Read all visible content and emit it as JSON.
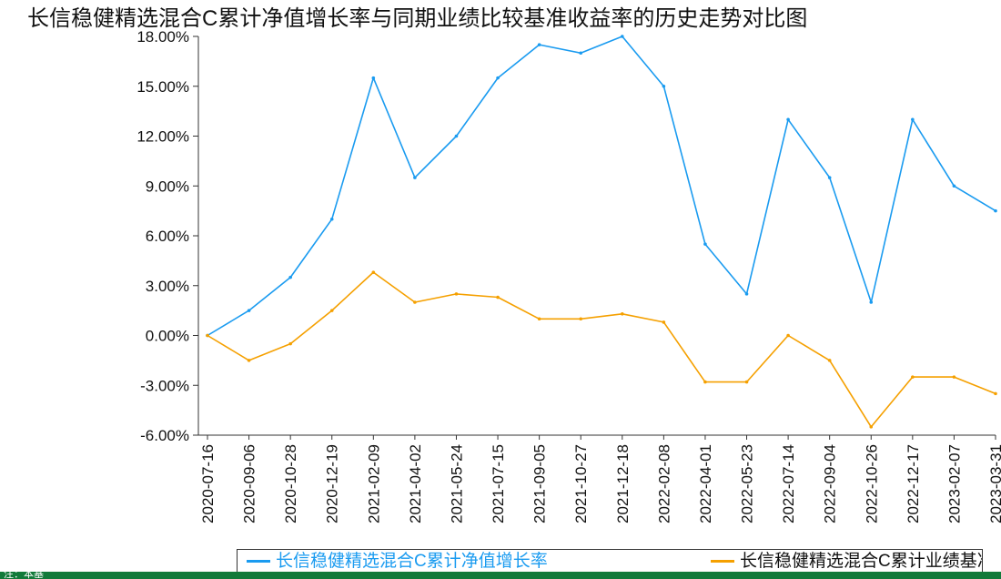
{
  "title": "长信稳健精选混合C累计净值增长率与同期业绩比较基准收益率的历史走势对比图",
  "legend": {
    "series1_label": "长信稳健精选混合C累计净值增长率",
    "series2_label": "长信稳健精选混合C累计业绩基准收益率"
  },
  "footer_text": "注：本基",
  "colors": {
    "fund": "#1a9bf0",
    "benchmark": "#f5a000",
    "grid": "#cccccc",
    "axis": "#333333",
    "text": "#111111",
    "footer": "#117a3a"
  },
  "chart_data": {
    "type": "line",
    "title": "长信稳健精选混合C累计净值增长率与同期业绩比较基准收益率的历史走势对比图",
    "ylim": [
      -6,
      18
    ],
    "yticks": [
      -6,
      -3,
      0,
      3,
      6,
      9,
      12,
      15,
      18
    ],
    "ytick_labels": [
      "-6.00%",
      "-3.00%",
      "0.00%",
      "3.00%",
      "6.00%",
      "9.00%",
      "12.00%",
      "15.00%",
      "18.00%"
    ],
    "grid": false,
    "legend_position": "bottom",
    "x": [
      "2020-07-16",
      "2020-09-06",
      "2020-10-28",
      "2020-12-19",
      "2021-02-09",
      "2021-04-02",
      "2021-05-24",
      "2021-07-15",
      "2021-09-05",
      "2021-10-27",
      "2021-12-18",
      "2022-02-08",
      "2022-04-01",
      "2022-05-23",
      "2022-07-14",
      "2022-09-04",
      "2022-10-26",
      "2022-12-17",
      "2023-02-07",
      "2023-03-31"
    ],
    "series": [
      {
        "name": "长信稳健精选混合C累计净值增长率",
        "values": [
          0.0,
          1.5,
          3.5,
          7.0,
          15.5,
          9.5,
          12.0,
          15.5,
          17.5,
          17.0,
          18.0,
          15.0,
          5.5,
          2.5,
          13.0,
          9.5,
          2.0,
          13.0,
          9.0,
          7.5
        ]
      },
      {
        "name": "长信稳健精选混合C累计业绩基准收益率",
        "values": [
          0.0,
          -1.5,
          -0.5,
          1.5,
          3.8,
          2.0,
          2.5,
          2.3,
          1.0,
          1.0,
          1.3,
          0.8,
          -2.8,
          -2.8,
          0.0,
          -1.5,
          -5.5,
          -2.5,
          -2.5,
          -3.5
        ]
      }
    ]
  }
}
